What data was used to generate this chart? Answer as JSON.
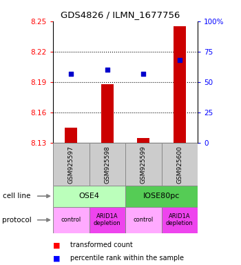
{
  "title": "GDS4826 / ILMN_1677756",
  "samples": [
    "GSM925597",
    "GSM925598",
    "GSM925599",
    "GSM925600"
  ],
  "bar_values": [
    8.145,
    8.188,
    8.135,
    8.245
  ],
  "bar_base": 8.13,
  "blue_values": [
    57,
    60,
    57,
    68
  ],
  "ylim_left": [
    8.13,
    8.25
  ],
  "ylim_right": [
    0,
    100
  ],
  "yticks_left": [
    8.13,
    8.16,
    8.19,
    8.22,
    8.25
  ],
  "yticks_right": [
    0,
    25,
    50,
    75,
    100
  ],
  "bar_color": "#cc0000",
  "blue_color": "#0000cc",
  "sample_box_color": "#cccccc",
  "cell_groups": [
    [
      "OSE4",
      0,
      2,
      "#bbffbb"
    ],
    [
      "IOSE80pc",
      2,
      4,
      "#55cc55"
    ]
  ],
  "proto_colors": [
    "#ffaaff",
    "#ee44ee",
    "#ffaaff",
    "#ee44ee"
  ],
  "proto_labels": [
    "control",
    "ARID1A\ndepletion",
    "control",
    "ARID1A\ndepletion"
  ],
  "legend_red_label": "transformed count",
  "legend_blue_label": "percentile rank within the sample",
  "grid_lines": [
    8.22,
    8.19,
    8.16
  ]
}
